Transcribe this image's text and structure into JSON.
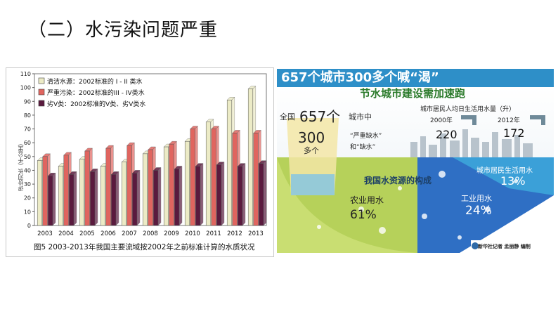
{
  "page_title": "（二）水污染问题严重",
  "chart_data": {
    "type": "bar",
    "categories": [
      "2003",
      "2004",
      "2005",
      "2006",
      "2007",
      "2008",
      "2009",
      "2010",
      "2011",
      "2012",
      "2013"
    ],
    "series": [
      {
        "name": "清洁水源：2002标准的 I - II 类水",
        "color": "#ecebc6",
        "values": [
          47,
          43,
          48,
          43,
          46,
          52,
          57,
          61,
          75,
          91,
          99
        ]
      },
      {
        "name": "严重污染：2002标准的III - IV类水",
        "color": "#e0655f",
        "values": [
          50,
          51,
          54,
          56,
          58,
          55,
          59,
          70,
          70,
          67,
          67
        ]
      },
      {
        "name": "劣V类：2002标准的V类、劣V类水",
        "color": "#5a1a3e",
        "values": [
          36,
          37,
          39,
          37,
          38,
          40,
          41,
          43,
          44,
          43,
          45
        ]
      }
    ],
    "title": "",
    "xlabel": "",
    "ylabel": "评价河长（千公里）",
    "ylim": [
      0,
      110
    ],
    "yticks": [
      0,
      10,
      20,
      30,
      40,
      50,
      60,
      70,
      80,
      90,
      100,
      110
    ],
    "caption": "图5  2003-2013年我国主要流域按2002年之前标准计算的水质状况",
    "legend_position": "top-left"
  },
  "infographic": {
    "headline": "657个城市300多个喊“渴”",
    "subheadline": "节水城市建设需加速跑",
    "national_label": "全国",
    "city_count": "657个",
    "city_suffix": "城市中",
    "shortage_count": "300",
    "shortage_unit": "多个",
    "shortage_type_a": "“严重缺水”",
    "shortage_type_b": "和“缺水”",
    "daily_use_title": "城市居民人均日生活用水量（升）",
    "year_a": "2000年",
    "value_a": "220",
    "year_b": "2012年",
    "value_b": "172",
    "composition_title": "我国水资源的构成",
    "agri_label": "农业用水",
    "agri_pct": "61%",
    "industry_label": "工业用水",
    "industry_pct": "24%",
    "domestic_label": "城市居民生活用水",
    "domestic_pct": "13%",
    "credit": "新华社记者 孟丽静 编制",
    "colors": {
      "head": "#2e8fc8",
      "agri": "#c5dd6b",
      "industry": "#2f6fc4",
      "domestic": "#3ba0d8"
    }
  }
}
